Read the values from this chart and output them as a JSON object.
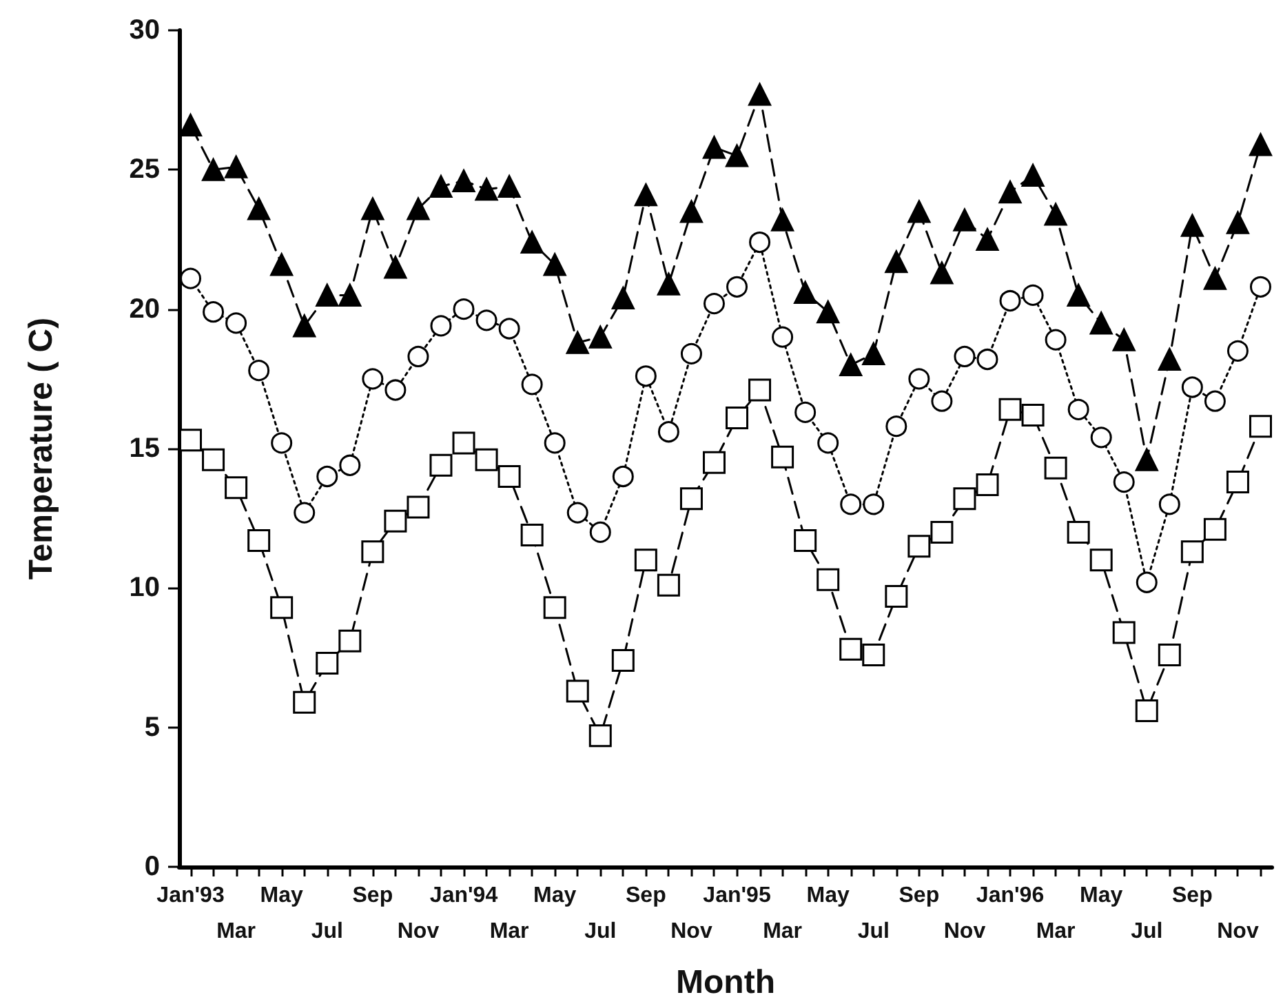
{
  "chart_data": {
    "type": "line",
    "xlabel": "Month",
    "ylabel": "Temperature ( C)",
    "categories": [
      "Jan'93",
      null,
      "Mar",
      null,
      "May",
      null,
      "Jul",
      null,
      "Sep",
      null,
      "Nov",
      null,
      "Jan'94",
      null,
      "Mar",
      null,
      "May",
      null,
      "Jul",
      null,
      "Sep",
      null,
      "Nov",
      null,
      "Jan'95",
      null,
      "Mar",
      null,
      "May",
      null,
      "Jul",
      null,
      "Sep",
      null,
      "Nov",
      null,
      "Jan'96",
      null,
      "Mar",
      null,
      "May",
      null,
      "Jul",
      null,
      "Sep",
      null,
      "Nov",
      null
    ],
    "series": [
      {
        "color": "#000000",
        "marker": "triangle",
        "line_style": "dashed",
        "values": [
          26.6,
          25.0,
          25.1,
          23.6,
          21.6,
          19.4,
          20.5,
          20.5,
          23.6,
          21.5,
          23.6,
          24.4,
          24.6,
          24.3,
          24.4,
          22.4,
          21.6,
          18.8,
          19.0,
          20.4,
          24.1,
          20.9,
          23.5,
          25.8,
          25.5,
          27.7,
          23.2,
          20.6,
          19.9,
          18.0,
          18.4,
          21.7,
          23.5,
          21.3,
          23.2,
          22.5,
          24.2,
          24.8,
          23.4,
          20.5,
          19.5,
          18.9,
          14.6,
          18.2,
          23.0,
          21.1,
          23.1,
          25.9
        ]
      },
      {
        "color": "#000000",
        "marker": "circle",
        "line_style": "dotted",
        "values": [
          21.1,
          19.9,
          19.5,
          17.8,
          15.2,
          12.7,
          14.0,
          14.4,
          17.5,
          17.1,
          18.3,
          19.4,
          20.0,
          19.6,
          19.3,
          17.3,
          15.2,
          12.7,
          12.0,
          14.0,
          17.6,
          15.6,
          18.4,
          20.2,
          20.8,
          22.4,
          19.0,
          16.3,
          15.2,
          13.0,
          13.0,
          15.8,
          17.5,
          16.7,
          18.3,
          18.2,
          20.3,
          20.5,
          18.9,
          16.4,
          15.4,
          13.8,
          10.2,
          13.0,
          17.2,
          16.7,
          18.5,
          20.8
        ]
      },
      {
        "color": "#000000",
        "marker": "square",
        "line_style": "dashed",
        "values": [
          15.3,
          14.6,
          13.6,
          11.7,
          9.3,
          5.9,
          7.3,
          8.1,
          11.3,
          12.4,
          12.9,
          14.4,
          15.2,
          14.6,
          14.0,
          11.9,
          9.3,
          6.3,
          4.7,
          7.4,
          11.0,
          10.1,
          13.2,
          14.5,
          16.1,
          17.1,
          14.7,
          11.7,
          10.3,
          7.8,
          7.6,
          9.7,
          11.5,
          12.0,
          13.2,
          13.7,
          16.4,
          16.2,
          14.3,
          12.0,
          11.0,
          8.4,
          5.6,
          7.6,
          11.3,
          12.1,
          13.8,
          15.8
        ]
      }
    ],
    "ylim": [
      0,
      30
    ],
    "yticks": [
      0,
      5,
      10,
      15,
      20,
      25,
      30
    ],
    "grid": false
  }
}
